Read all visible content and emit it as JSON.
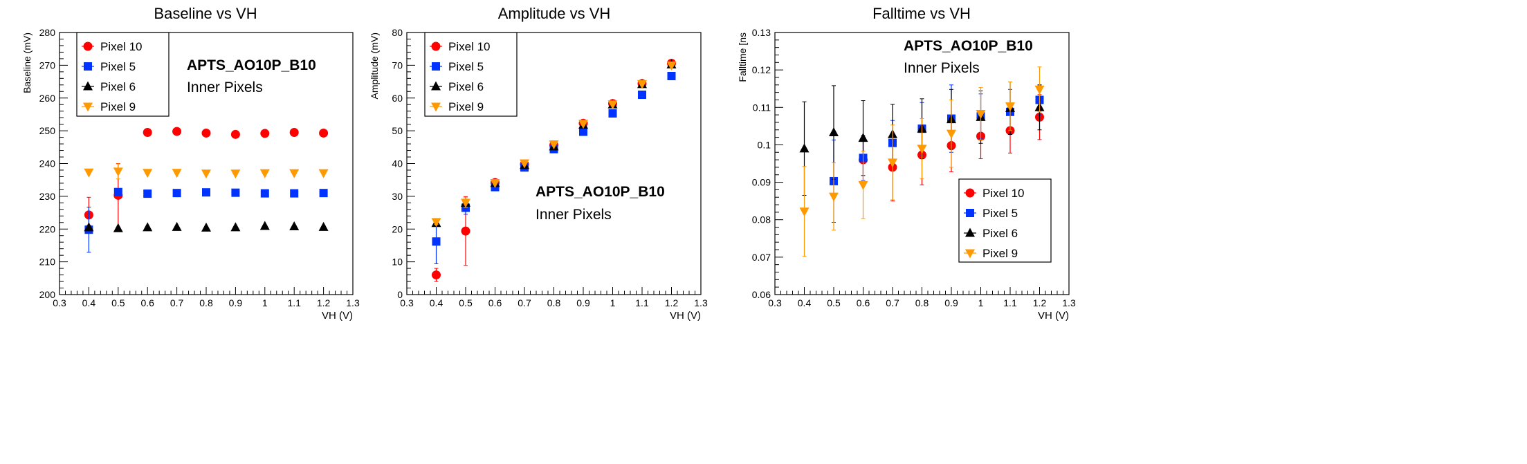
{
  "chart_data": [
    {
      "type": "scatter",
      "title": "Baseline vs VH",
      "xlabel": "VH (V)",
      "ylabel": "Baseline (mV)",
      "xlim": [
        0.3,
        1.3
      ],
      "ylim": [
        200,
        280
      ],
      "xticks": [
        "0.3",
        "0.4",
        "0.5",
        "0.6",
        "0.7",
        "0.8",
        "0.9",
        "1",
        "1.1",
        "1.2",
        "1.3"
      ],
      "yticks": [
        "200",
        "210",
        "220",
        "230",
        "240",
        "250",
        "260",
        "270",
        "280"
      ],
      "grid": false,
      "legend_position": "top-left",
      "annotation": {
        "title": "APTS_AO10P_B10",
        "subtitle": "Inner Pixels",
        "position": "top-center"
      },
      "x": [
        0.4,
        0.5,
        0.6,
        0.7,
        0.8,
        0.9,
        1.0,
        1.1,
        1.2
      ],
      "series": [
        {
          "name": "Pixel 10",
          "marker": "circle",
          "color": "#ff0000",
          "values": [
            224.3,
            230.3,
            249.5,
            249.8,
            249.3,
            248.9,
            249.2,
            249.5,
            249.3
          ],
          "errors": [
            5.4,
            9.7,
            0.3,
            0.3,
            0.3,
            0.3,
            0.3,
            0.3,
            0.3
          ]
        },
        {
          "name": "Pixel 5",
          "marker": "square",
          "color": "#0033ff",
          "values": [
            219.8,
            231.3,
            230.8,
            231.0,
            231.2,
            231.1,
            230.9,
            230.9,
            231.0
          ],
          "errors": [
            6.9,
            1.0,
            0.3,
            0.3,
            0.3,
            0.3,
            0.3,
            0.3,
            0.3
          ]
        },
        {
          "name": "Pixel 6",
          "marker": "triangle-up",
          "color": "#000000",
          "values": [
            220.5,
            220.2,
            220.5,
            220.6,
            220.4,
            220.5,
            220.9,
            220.8,
            220.6
          ],
          "errors": [
            0.6,
            0.3,
            0.3,
            0.3,
            0.3,
            0.3,
            0.3,
            0.3,
            0.3
          ]
        },
        {
          "name": "Pixel 9",
          "marker": "triangle-down",
          "color": "#ff9900",
          "values": [
            237.3,
            237.6,
            237.2,
            237.2,
            237.0,
            237.0,
            237.1,
            237.1,
            237.1
          ],
          "errors": [
            0.4,
            2.3,
            0.3,
            0.3,
            0.3,
            0.3,
            0.3,
            0.3,
            0.3
          ]
        }
      ]
    },
    {
      "type": "scatter",
      "title": "Amplitude vs VH",
      "xlabel": "VH (V)",
      "ylabel": "Amplitude (mV)",
      "xlim": [
        0.3,
        1.3
      ],
      "ylim": [
        0,
        80
      ],
      "xticks": [
        "0.3",
        "0.4",
        "0.5",
        "0.6",
        "0.7",
        "0.8",
        "0.9",
        "1",
        "1.1",
        "1.2",
        "1.3"
      ],
      "yticks": [
        "0",
        "10",
        "20",
        "30",
        "40",
        "50",
        "60",
        "70",
        "80"
      ],
      "grid": false,
      "legend_position": "top-left",
      "annotation": {
        "title": "APTS_AO10P_B10",
        "subtitle": "Inner Pixels",
        "position": "center-right"
      },
      "x": [
        0.4,
        0.5,
        0.6,
        0.7,
        0.8,
        0.9,
        1.0,
        1.1,
        1.2
      ],
      "series": [
        {
          "name": "Pixel 10",
          "marker": "circle",
          "color": "#ff0000",
          "values": [
            6.0,
            19.4,
            34.2,
            39.8,
            45.6,
            52.3,
            58.3,
            64.4,
            70.6
          ],
          "errors": [
            2.0,
            10.5,
            0.5,
            0.5,
            0.5,
            0.5,
            0.5,
            0.5,
            0.5
          ]
        },
        {
          "name": "Pixel 5",
          "marker": "square",
          "color": "#0033ff",
          "values": [
            16.2,
            26.5,
            32.8,
            38.8,
            44.4,
            49.7,
            55.3,
            61.0,
            66.7
          ],
          "errors": [
            6.8,
            2.0,
            0.5,
            0.5,
            0.5,
            0.5,
            0.5,
            0.5,
            0.5
          ]
        },
        {
          "name": "Pixel 6",
          "marker": "triangle-up",
          "color": "#000000",
          "values": [
            21.8,
            28.0,
            34.0,
            39.5,
            45.2,
            51.8,
            58.0,
            64.2,
            70.2
          ],
          "errors": [
            0.8,
            0.5,
            0.5,
            0.5,
            0.5,
            0.5,
            0.5,
            0.5,
            0.5
          ]
        },
        {
          "name": "Pixel 9",
          "marker": "triangle-down",
          "color": "#ff9900",
          "values": [
            22.2,
            28.1,
            34.1,
            40.1,
            45.9,
            52.2,
            58.1,
            64.3,
            70.0
          ],
          "errors": [
            0.8,
            1.5,
            0.5,
            0.5,
            0.5,
            0.5,
            0.5,
            0.5,
            0.5
          ]
        }
      ]
    },
    {
      "type": "scatter",
      "title": "Falltime vs VH",
      "xlabel": "VH (V)",
      "ylabel": "Falltime [ns",
      "xlim": [
        0.3,
        1.3
      ],
      "ylim": [
        0.06,
        0.13
      ],
      "xticks": [
        "0.3",
        "0.4",
        "0.5",
        "0.6",
        "0.7",
        "0.8",
        "0.9",
        "1",
        "1.1",
        "1.2",
        "1.3"
      ],
      "yticks": [
        "0.06",
        "0.07",
        "0.08",
        "0.09",
        "0.1",
        "0.11",
        "0.12",
        "0.13"
      ],
      "grid": false,
      "legend_position": "bottom-right",
      "annotation": {
        "title": "APTS_AO10P_B10",
        "subtitle": "Inner Pixels",
        "position": "top-center"
      },
      "x": [
        0.4,
        0.5,
        0.6,
        0.7,
        0.8,
        0.9,
        1.0,
        1.1,
        1.2
      ],
      "series": [
        {
          "name": "Pixel 10",
          "marker": "circle",
          "color": "#ff0000",
          "values": [
            null,
            null,
            0.096,
            0.094,
            0.0973,
            0.0998,
            0.1023,
            0.1038,
            0.1074
          ],
          "errors": [
            null,
            null,
            0.006,
            0.009,
            0.008,
            0.007,
            0.006,
            0.006,
            0.006
          ]
        },
        {
          "name": "Pixel 5",
          "marker": "square",
          "color": "#0033ff",
          "values": [
            null,
            0.0903,
            0.0965,
            0.1005,
            0.1043,
            0.107,
            0.1076,
            0.1088,
            0.112
          ],
          "errors": [
            null,
            0.011,
            0.006,
            0.006,
            0.007,
            0.009,
            0.006,
            0.006,
            0.004
          ]
        },
        {
          "name": "Pixel 6",
          "marker": "triangle-up",
          "color": "#000000",
          "values": [
            0.099,
            0.1033,
            0.1018,
            0.1028,
            0.1043,
            0.1068,
            0.1074,
            0.1098,
            0.11
          ],
          "errors": [
            0.0125,
            0.0125,
            0.01,
            0.008,
            0.008,
            0.008,
            0.007,
            0.007,
            0.006
          ]
        },
        {
          "name": "Pixel 9",
          "marker": "triangle-down",
          "color": "#ff9900",
          "values": [
            0.0822,
            0.0862,
            0.0893,
            0.0953,
            0.099,
            0.103,
            0.1083,
            0.1103,
            0.1148
          ],
          "errors": [
            0.012,
            0.009,
            0.009,
            0.01,
            0.008,
            0.009,
            0.007,
            0.0065,
            0.006
          ]
        }
      ]
    }
  ]
}
